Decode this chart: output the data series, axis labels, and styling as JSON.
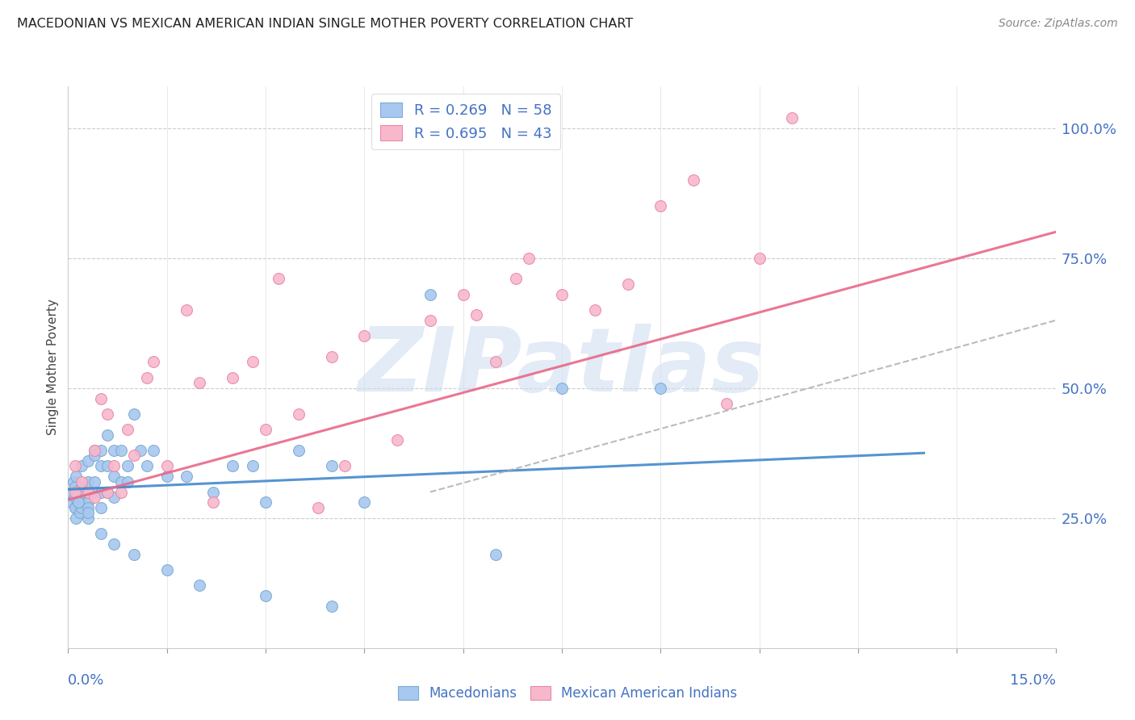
{
  "title": "MACEDONIAN VS MEXICAN AMERICAN INDIAN SINGLE MOTHER POVERTY CORRELATION CHART",
  "source": "Source: ZipAtlas.com",
  "ylabel": "Single Mother Poverty",
  "ytick_labels": [
    "100.0%",
    "75.0%",
    "50.0%",
    "25.0%"
  ],
  "ytick_values": [
    1.0,
    0.75,
    0.5,
    0.25
  ],
  "xlim": [
    0.0,
    0.15
  ],
  "ylim": [
    0.0,
    1.08
  ],
  "macedonian_R": 0.269,
  "macedonian_N": 58,
  "mexican_R": 0.695,
  "mexican_N": 43,
  "macedonian_color": "#a8c8f0",
  "macedonian_edge": "#7aaad0",
  "mexican_color": "#f8b8cc",
  "mexican_edge": "#e888a8",
  "trend_macedonian_color": "#4488cc",
  "trend_mexican_color": "#e86888",
  "watermark_color": "#d0dff0",
  "macedonian_x": [
    0.0005,
    0.0005,
    0.0008,
    0.001,
    0.001,
    0.001,
    0.001,
    0.0012,
    0.0012,
    0.0015,
    0.0015,
    0.0018,
    0.002,
    0.002,
    0.002,
    0.002,
    0.002,
    0.003,
    0.003,
    0.003,
    0.003,
    0.003,
    0.003,
    0.004,
    0.004,
    0.004,
    0.004,
    0.005,
    0.005,
    0.005,
    0.005,
    0.006,
    0.006,
    0.006,
    0.007,
    0.007,
    0.007,
    0.008,
    0.008,
    0.009,
    0.009,
    0.01,
    0.011,
    0.012,
    0.013,
    0.015,
    0.018,
    0.022,
    0.025,
    0.028,
    0.03,
    0.035,
    0.04,
    0.045,
    0.055,
    0.065,
    0.075,
    0.09
  ],
  "macedonian_y": [
    0.3,
    0.28,
    0.32,
    0.27,
    0.29,
    0.31,
    0.27,
    0.25,
    0.33,
    0.28,
    0.3,
    0.26,
    0.29,
    0.27,
    0.31,
    0.35,
    0.3,
    0.28,
    0.32,
    0.27,
    0.36,
    0.3,
    0.25,
    0.38,
    0.37,
    0.3,
    0.32,
    0.35,
    0.38,
    0.3,
    0.27,
    0.41,
    0.3,
    0.35,
    0.29,
    0.33,
    0.38,
    0.32,
    0.38,
    0.35,
    0.32,
    0.45,
    0.38,
    0.35,
    0.38,
    0.33,
    0.33,
    0.3,
    0.35,
    0.35,
    0.28,
    0.38,
    0.35,
    0.28,
    0.68,
    0.18,
    0.5,
    0.5
  ],
  "macedonian_low_y": [
    0.28,
    0.26,
    0.22,
    0.2,
    0.18,
    0.15,
    0.12,
    0.1,
    0.08
  ],
  "macedonian_low_x": [
    0.0015,
    0.003,
    0.005,
    0.007,
    0.01,
    0.015,
    0.02,
    0.03,
    0.04
  ],
  "mexican_x": [
    0.001,
    0.001,
    0.002,
    0.003,
    0.004,
    0.004,
    0.005,
    0.006,
    0.006,
    0.007,
    0.008,
    0.009,
    0.01,
    0.012,
    0.013,
    0.015,
    0.018,
    0.02,
    0.022,
    0.025,
    0.028,
    0.03,
    0.032,
    0.035,
    0.038,
    0.04,
    0.042,
    0.045,
    0.05,
    0.055,
    0.06,
    0.062,
    0.065,
    0.068,
    0.07,
    0.075,
    0.08,
    0.085,
    0.09,
    0.095,
    0.1,
    0.105,
    0.11
  ],
  "mexican_y": [
    0.3,
    0.35,
    0.32,
    0.3,
    0.29,
    0.38,
    0.48,
    0.3,
    0.45,
    0.35,
    0.3,
    0.42,
    0.37,
    0.52,
    0.55,
    0.35,
    0.65,
    0.51,
    0.28,
    0.52,
    0.55,
    0.42,
    0.71,
    0.45,
    0.27,
    0.56,
    0.35,
    0.6,
    0.4,
    0.63,
    0.68,
    0.64,
    0.55,
    0.71,
    0.75,
    0.68,
    0.65,
    0.7,
    0.85,
    0.9,
    0.47,
    0.75,
    1.02
  ]
}
